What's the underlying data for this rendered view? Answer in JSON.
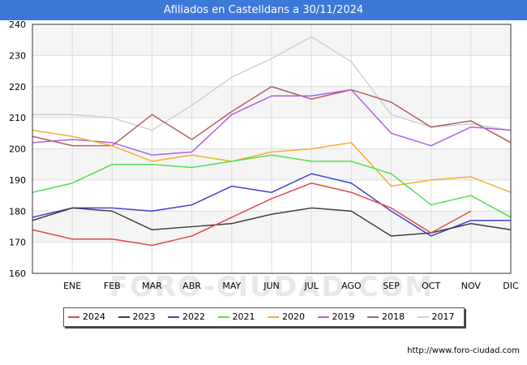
{
  "title": "Afiliados en Castelldans a 30/11/2024",
  "source": "http://www.foro-ciudad.com",
  "watermark": "FORO-CIUDAD.COM",
  "chart_data": {
    "type": "line",
    "categories": [
      "",
      "ENE",
      "FEB",
      "MAR",
      "ABR",
      "MAY",
      "JUN",
      "JUL",
      "AGO",
      "SEP",
      "OCT",
      "NOV",
      "DIC"
    ],
    "ylim": [
      160,
      240
    ],
    "yticks": [
      160,
      170,
      180,
      190,
      200,
      210,
      220,
      230,
      240
    ],
    "grid": true,
    "legend_position": "bottom",
    "series": [
      {
        "name": "2017",
        "color": "#d0d0d0",
        "values": [
          211,
          211,
          210,
          206,
          214,
          223,
          229,
          236,
          228,
          211,
          207,
          208,
          206
        ]
      },
      {
        "name": "2018",
        "color": "#b06060",
        "values": [
          204,
          201,
          201,
          211,
          203,
          212,
          220,
          216,
          219,
          215,
          207,
          209,
          202
        ]
      },
      {
        "name": "2019",
        "color": "#b060e0",
        "values": [
          202,
          203,
          202,
          198,
          199,
          211,
          217,
          217,
          219,
          205,
          201,
          207,
          206
        ]
      },
      {
        "name": "2020",
        "color": "#f0b030",
        "values": [
          206,
          204,
          201,
          196,
          198,
          196,
          199,
          200,
          202,
          188,
          190,
          191,
          186
        ]
      },
      {
        "name": "2021",
        "color": "#50e050",
        "values": [
          186,
          189,
          195,
          195,
          194,
          196,
          198,
          196,
          196,
          192,
          182,
          185,
          178
        ]
      },
      {
        "name": "2022",
        "color": "#4040d0",
        "values": [
          178,
          181,
          181,
          180,
          182,
          188,
          186,
          192,
          189,
          180,
          172,
          177,
          177
        ]
      },
      {
        "name": "2023",
        "color": "#404040",
        "values": [
          177,
          181,
          180,
          174,
          175,
          176,
          179,
          181,
          180,
          172,
          173,
          176,
          174
        ]
      },
      {
        "name": "2024",
        "color": "#e04848",
        "values": [
          174,
          171,
          171,
          169,
          172,
          178,
          184,
          189,
          186,
          181,
          173,
          180,
          null
        ]
      }
    ],
    "legend_order": [
      "2024",
      "2023",
      "2022",
      "2021",
      "2020",
      "2019",
      "2018",
      "2017"
    ]
  }
}
